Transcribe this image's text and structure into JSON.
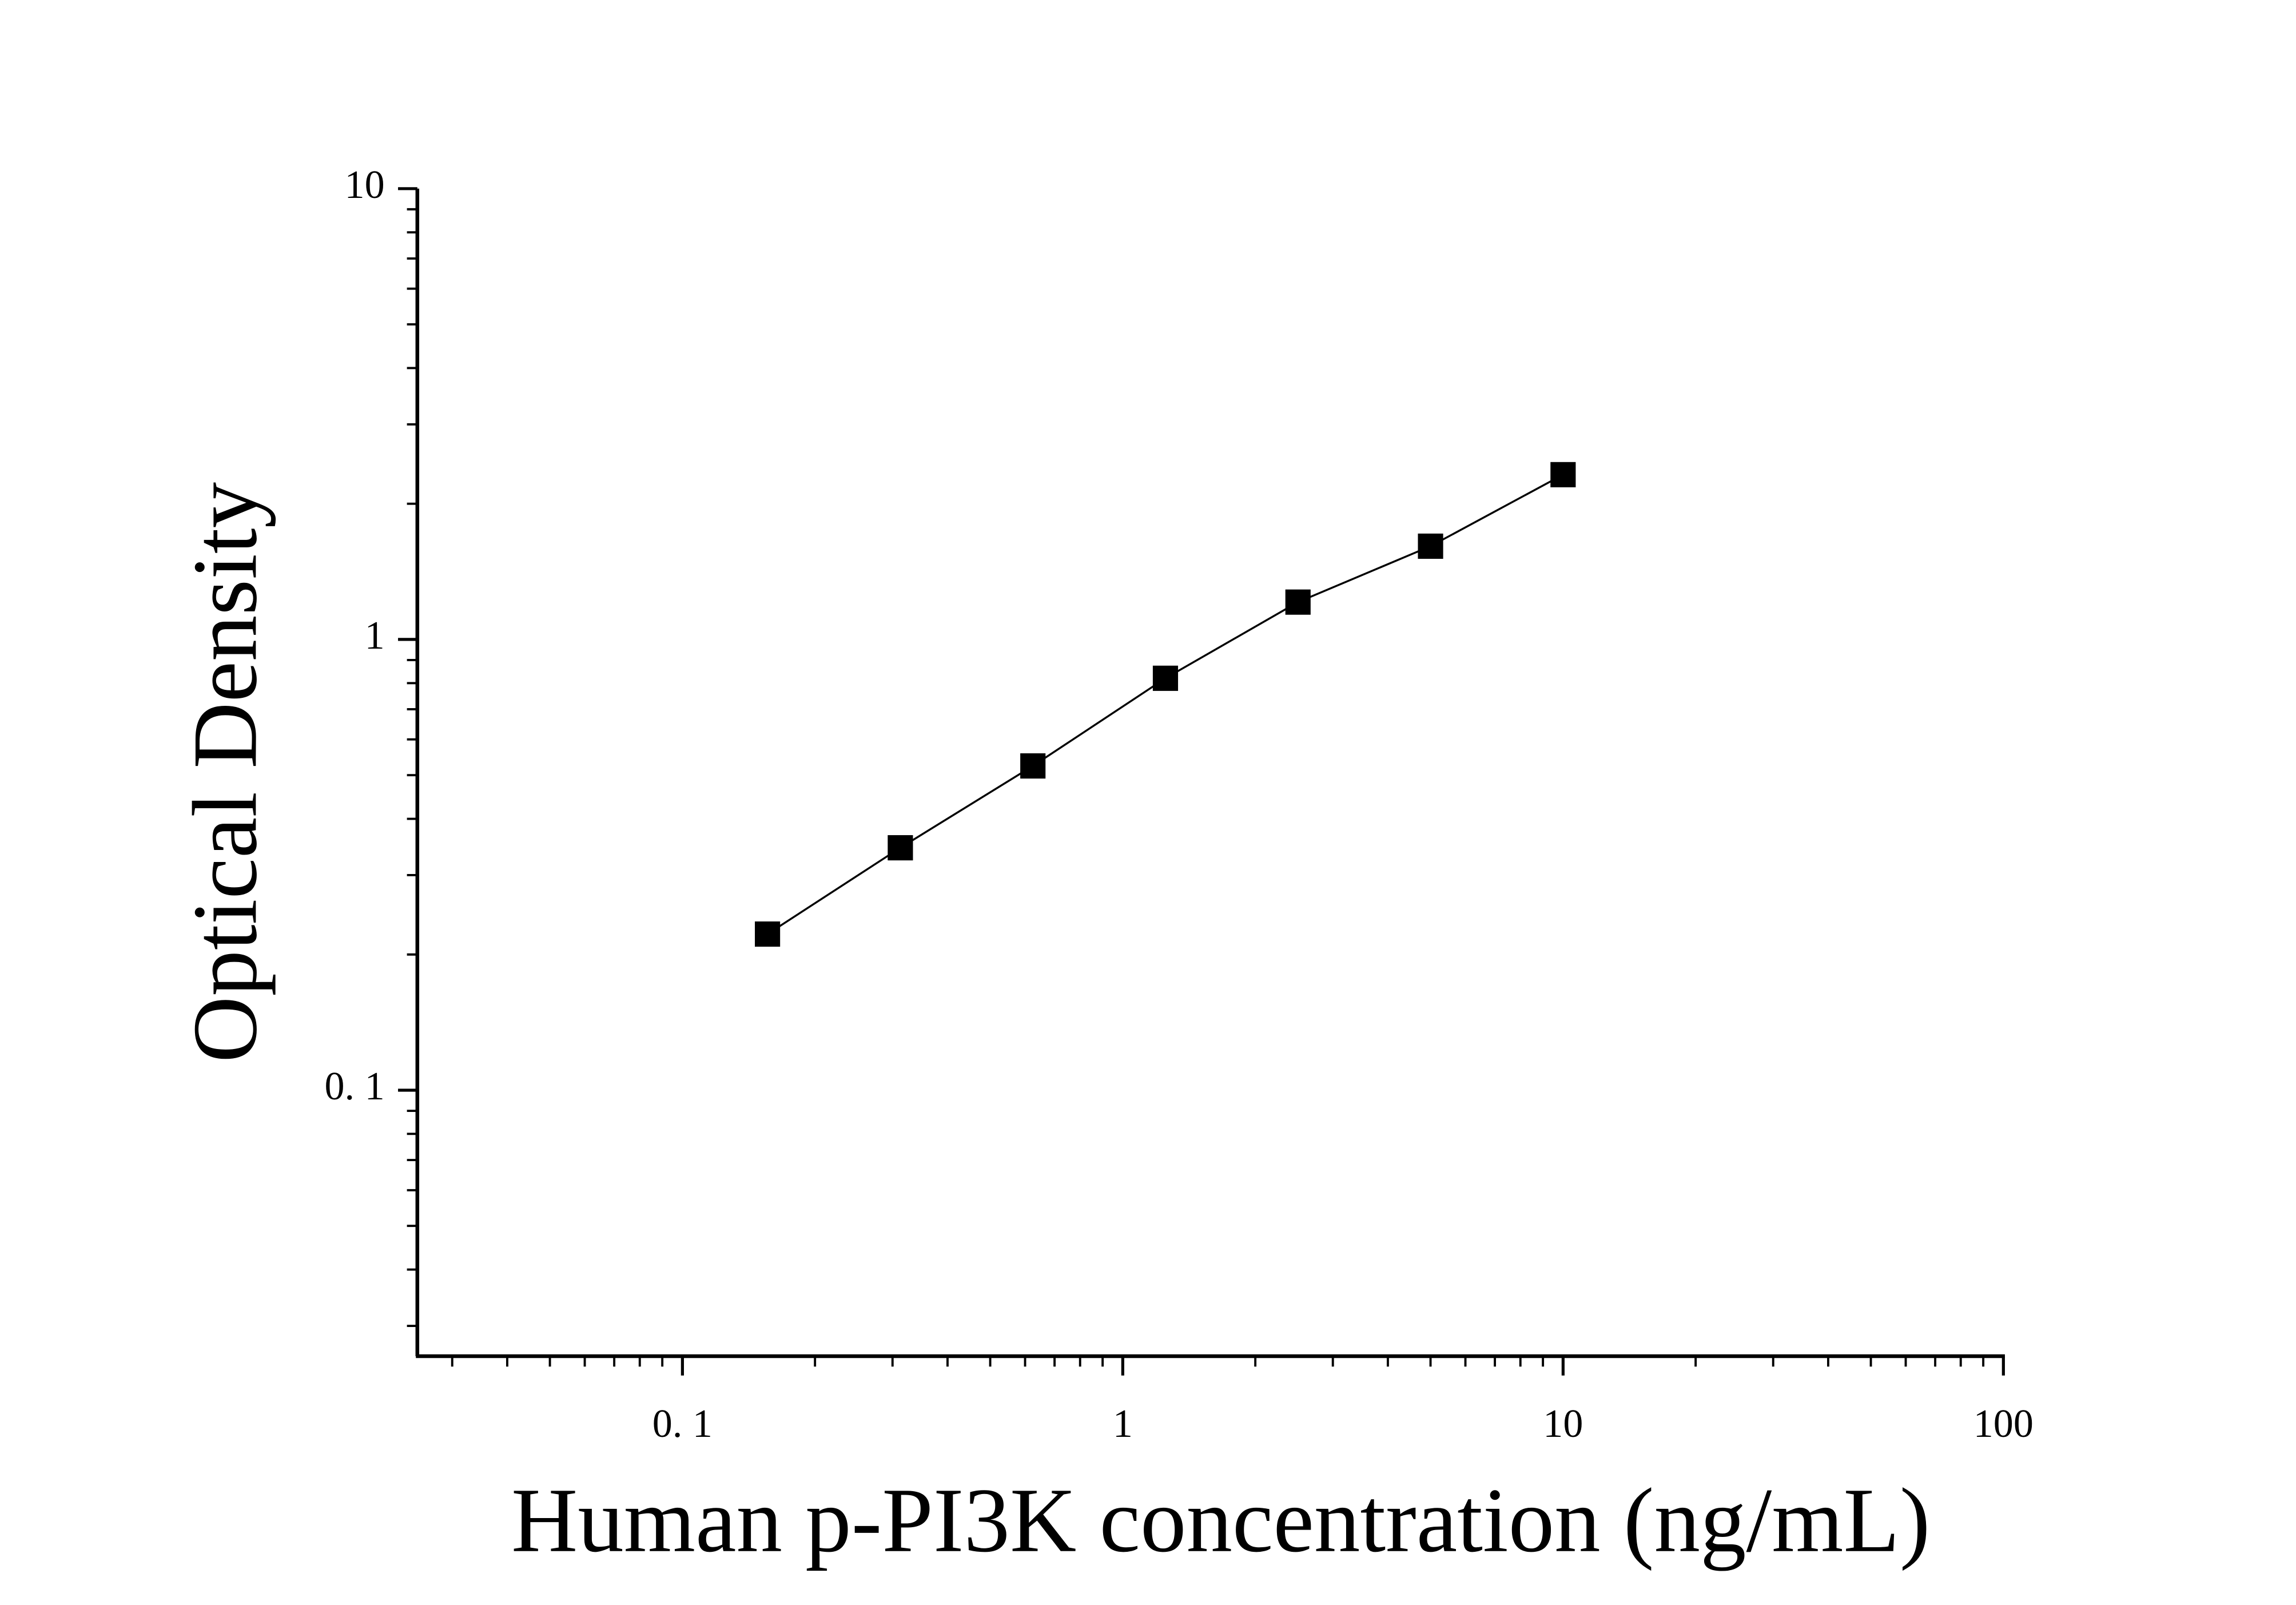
{
  "chart_data": {
    "type": "line",
    "x_label": "Human p-PI3K concentration (ng/mL)",
    "y_label": "Optical Density",
    "x": [
      0.156,
      0.3125,
      0.625,
      1.25,
      2.5,
      5,
      10
    ],
    "series": [
      {
        "color": "#000000",
        "values": [
          0.222,
          0.345,
          0.524,
          0.82,
          1.21,
          1.61,
          2.32
        ]
      }
    ],
    "xscale": "log",
    "yscale": "log",
    "xlim": [
      0.025,
      100
    ],
    "ylim": [
      0.0257,
      10
    ],
    "xticks": [
      {
        "value": 0.1,
        "label": "0. 1"
      },
      1,
      10,
      100
    ],
    "yticks": [
      {
        "value": 0.1,
        "label": "0. 1"
      },
      1,
      10
    ],
    "grid": false
  }
}
